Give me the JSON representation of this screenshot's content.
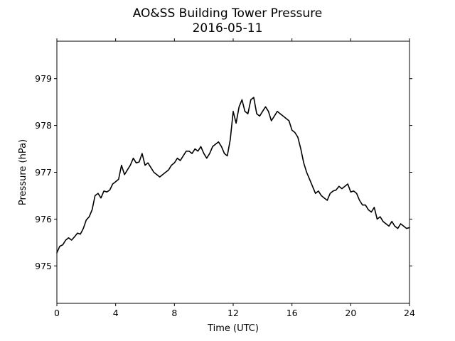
{
  "chart_data": {
    "type": "line",
    "title": "AO&SS Building Tower Pressure",
    "subtitle": "2016-05-11",
    "xlabel": "Time (UTC)",
    "ylabel": "Pressure (hPa)",
    "xlim": [
      0,
      24
    ],
    "ylim": [
      974.2,
      979.8
    ],
    "x_ticks": [
      0,
      4,
      8,
      12,
      16,
      20,
      24
    ],
    "x_tick_labels": [
      "0",
      "4",
      "8",
      "12",
      "16",
      "20",
      "24"
    ],
    "y_ticks": [
      975,
      976,
      977,
      978,
      979
    ],
    "y_tick_labels": [
      "975",
      "976",
      "977",
      "978",
      "979"
    ],
    "grid": false,
    "line_color": "#000000",
    "series": [
      {
        "x": [
          0,
          0.2,
          0.4,
          0.6,
          0.8,
          1.0,
          1.2,
          1.4,
          1.6,
          1.8,
          2.0,
          2.2,
          2.4,
          2.6,
          2.8,
          3.0,
          3.2,
          3.4,
          3.6,
          3.8,
          4.0,
          4.2,
          4.4,
          4.6,
          4.8,
          5.0,
          5.2,
          5.4,
          5.6,
          5.8,
          6.0,
          6.2,
          6.4,
          6.6,
          6.8,
          7.0,
          7.2,
          7.4,
          7.6,
          7.8,
          8.0,
          8.2,
          8.4,
          8.6,
          8.8,
          9.0,
          9.2,
          9.4,
          9.6,
          9.8,
          10.0,
          10.2,
          10.4,
          10.6,
          10.8,
          11.0,
          11.2,
          11.4,
          11.6,
          11.8,
          12.0,
          12.2,
          12.4,
          12.6,
          12.8,
          13.0,
          13.2,
          13.4,
          13.6,
          13.8,
          14.0,
          14.2,
          14.4,
          14.6,
          14.8,
          15.0,
          15.2,
          15.4,
          15.6,
          15.8,
          16.0,
          16.2,
          16.4,
          16.6,
          16.8,
          17.0,
          17.2,
          17.4,
          17.6,
          17.8,
          18.0,
          18.2,
          18.4,
          18.6,
          18.8,
          19.0,
          19.2,
          19.4,
          19.6,
          19.8,
          20.0,
          20.2,
          20.4,
          20.6,
          20.8,
          21.0,
          21.2,
          21.4,
          21.6,
          21.8,
          22.0,
          22.2,
          22.4,
          22.6,
          22.8,
          23.0,
          23.2,
          23.4,
          23.6,
          23.8,
          24.0
        ],
        "values": [
          975.28,
          975.42,
          975.45,
          975.55,
          975.6,
          975.55,
          975.62,
          975.7,
          975.68,
          975.8,
          975.98,
          976.05,
          976.2,
          976.5,
          976.55,
          976.45,
          976.6,
          976.58,
          976.62,
          976.75,
          976.8,
          976.85,
          977.15,
          976.95,
          977.05,
          977.15,
          977.3,
          977.2,
          977.22,
          977.4,
          977.15,
          977.2,
          977.1,
          977.0,
          976.95,
          976.9,
          976.95,
          977.0,
          977.05,
          977.15,
          977.2,
          977.3,
          977.25,
          977.35,
          977.45,
          977.45,
          977.4,
          977.5,
          977.45,
          977.55,
          977.4,
          977.3,
          977.4,
          977.55,
          977.6,
          977.65,
          977.55,
          977.4,
          977.35,
          977.7,
          978.3,
          978.05,
          978.4,
          978.55,
          978.3,
          978.25,
          978.55,
          978.6,
          978.25,
          978.2,
          978.3,
          978.4,
          978.3,
          978.1,
          978.2,
          978.3,
          978.25,
          978.2,
          978.15,
          978.1,
          977.9,
          977.85,
          977.75,
          977.5,
          977.2,
          977.0,
          976.85,
          976.7,
          976.55,
          976.6,
          976.5,
          976.45,
          976.4,
          976.55,
          976.6,
          976.62,
          976.7,
          976.65,
          976.7,
          976.75,
          976.58,
          976.6,
          976.55,
          976.4,
          976.3,
          976.3,
          976.2,
          976.15,
          976.25,
          976.0,
          976.05,
          975.95,
          975.9,
          975.85,
          975.95,
          975.85,
          975.8,
          975.9,
          975.85,
          975.8,
          975.82
        ]
      }
    ]
  }
}
